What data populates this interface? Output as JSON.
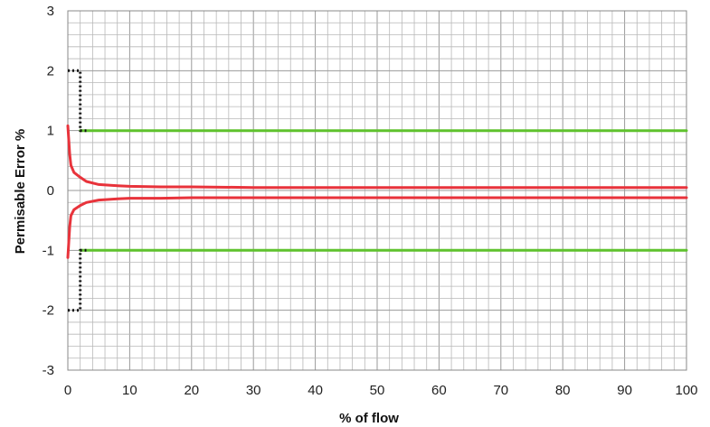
{
  "chart_data": {
    "type": "line",
    "title": "",
    "xlabel": "% of flow",
    "ylabel": "Permisable Error %",
    "xlim": [
      0,
      100
    ],
    "ylim": [
      -3,
      3
    ],
    "xticks": [
      0,
      10,
      20,
      30,
      40,
      50,
      60,
      70,
      80,
      90,
      100
    ],
    "yticks": [
      3,
      2,
      1,
      0,
      -1,
      -2,
      -3
    ],
    "grid": true,
    "legend": "none",
    "series": [
      {
        "key": "upper-error-curve",
        "color": "#e8333b",
        "style": "solid",
        "x": [
          0,
          0.3,
          0.5,
          1,
          2,
          3,
          5,
          8,
          10,
          15,
          20,
          30,
          50,
          70,
          100
        ],
        "y": [
          1.08,
          0.6,
          0.42,
          0.3,
          0.22,
          0.15,
          0.1,
          0.08,
          0.07,
          0.06,
          0.06,
          0.05,
          0.05,
          0.05,
          0.05
        ]
      },
      {
        "key": "lower-error-curve",
        "color": "#e8333b",
        "style": "solid",
        "x": [
          0,
          0.3,
          0.5,
          1,
          2,
          3,
          5,
          8,
          10,
          15,
          20,
          30,
          50,
          70,
          100
        ],
        "y": [
          -1.12,
          -0.6,
          -0.42,
          -0.32,
          -0.25,
          -0.2,
          -0.16,
          -0.14,
          -0.13,
          -0.13,
          -0.12,
          -0.12,
          -0.12,
          -0.12,
          -0.12
        ]
      },
      {
        "key": "upper-limit",
        "color": "#5fc22d",
        "style": "solid",
        "x": [
          2,
          100
        ],
        "y": [
          1,
          1
        ]
      },
      {
        "key": "lower-limit",
        "color": "#5fc22d",
        "style": "solid",
        "x": [
          2,
          100
        ],
        "y": [
          -1,
          -1
        ]
      },
      {
        "key": "upper-low-flow-limit",
        "color": "#111111",
        "style": "dotted",
        "x": [
          0,
          2,
          2,
          3
        ],
        "y": [
          2,
          2,
          1,
          1
        ]
      },
      {
        "key": "lower-low-flow-limit",
        "color": "#111111",
        "style": "dotted",
        "x": [
          0,
          2,
          2,
          3
        ],
        "y": [
          -2,
          -2,
          -1,
          -1
        ]
      }
    ]
  }
}
